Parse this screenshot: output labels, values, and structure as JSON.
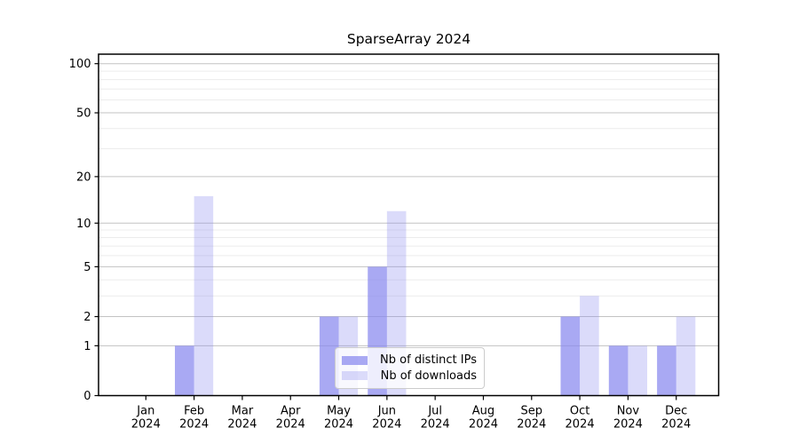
{
  "title": "SparseArray 2024",
  "chart_data": {
    "type": "bar",
    "title": "SparseArray 2024",
    "categories": [
      "Jan 2024",
      "Feb 2024",
      "Mar 2024",
      "Apr 2024",
      "May 2024",
      "Jun 2024",
      "Jul 2024",
      "Aug 2024",
      "Sep 2024",
      "Oct 2024",
      "Nov 2024",
      "Dec 2024"
    ],
    "series": [
      {
        "name": "Nb of distinct IPs",
        "values": [
          0,
          1,
          0,
          0,
          2,
          5,
          0,
          0,
          0,
          2,
          1,
          1
        ],
        "color": "#8888ee",
        "opacity": 0.72
      },
      {
        "name": "Nb of downloads",
        "values": [
          0,
          15,
          0,
          0,
          2,
          12,
          0,
          0,
          0,
          3,
          1,
          2
        ],
        "color": "#8888ee",
        "opacity": 0.3
      }
    ],
    "xlabel": "",
    "ylabel": "",
    "yscale": "log1p",
    "ylim": [
      0,
      114
    ],
    "y_major_ticks": [
      0,
      1,
      2,
      5,
      10,
      20,
      50,
      100
    ],
    "y_minor_gridlines": [
      3,
      4,
      6,
      7,
      8,
      9,
      30,
      40,
      60,
      70,
      80,
      90
    ],
    "grid": "horizontal major and minor",
    "legend_position": "lower center"
  },
  "colors": {
    "background": "#ffffff",
    "bar_base": "#8888ee",
    "bar_distinct_ips_rendered": "#a9a9f3",
    "bar_downloads_rendered": "#dbdbfa",
    "grid_major": "#c3c3c3",
    "grid_minor": "#ececec",
    "axis": "#000000",
    "text": "#000000",
    "legend_border": "#cccccc"
  }
}
